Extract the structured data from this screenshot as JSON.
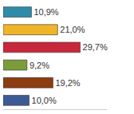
{
  "chart_data": {
    "type": "bar",
    "orientation": "horizontal",
    "categories": [
      null,
      null,
      null,
      null,
      null,
      null
    ],
    "values": [
      10.9,
      21.0,
      29.7,
      9.2,
      19.2,
      10.0
    ],
    "value_labels": [
      "10,9%",
      "21,0%",
      "29,7%",
      "9,2%",
      "19,2%",
      "10,0%"
    ],
    "colors": [
      "#2f8ca8",
      "#f0b428",
      "#c8283c",
      "#7a9c3a",
      "#8c3c10",
      "#3c5a94"
    ],
    "xlim": [
      0,
      40
    ],
    "xticks": [],
    "grid": false,
    "data_labels": true,
    "tick_labels": false
  }
}
